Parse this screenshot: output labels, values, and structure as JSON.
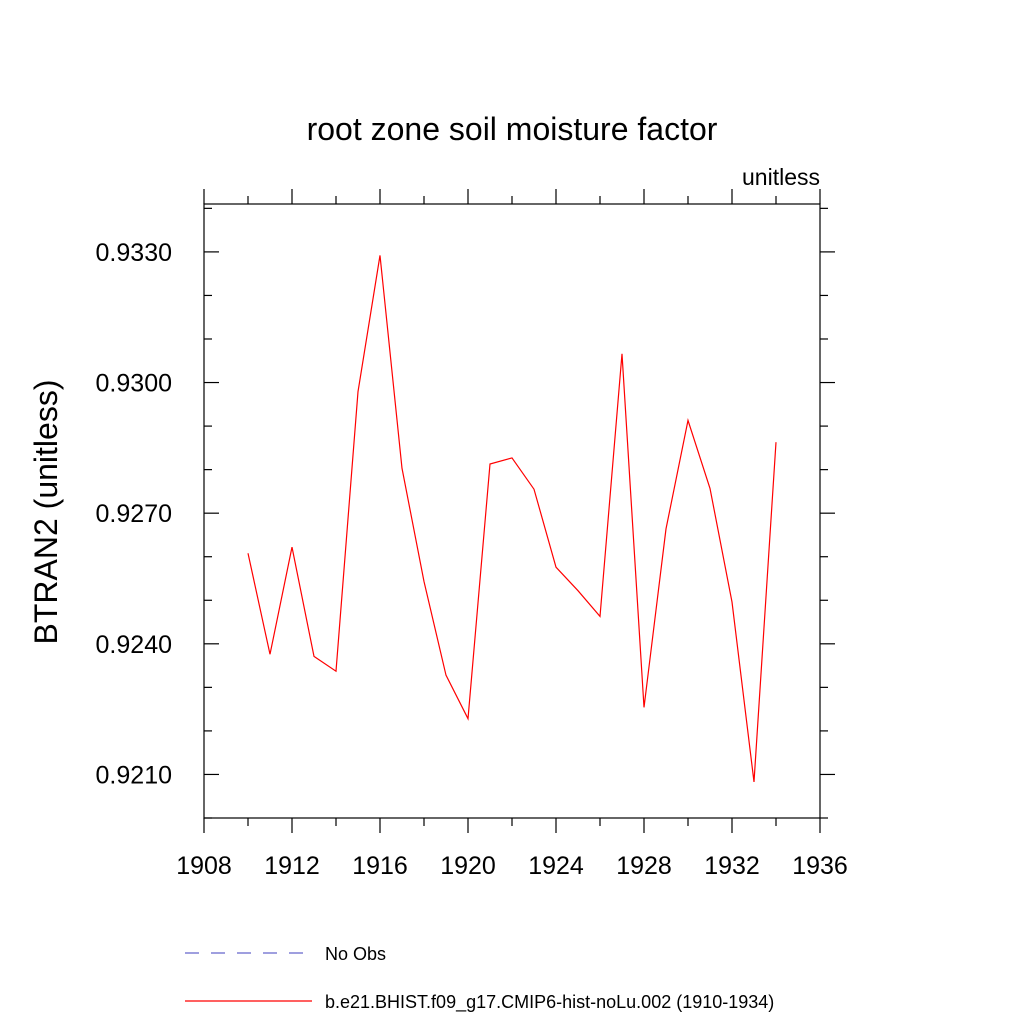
{
  "chart_data": {
    "type": "line",
    "title": "root zone soil moisture factor",
    "subtitle": "unitless",
    "xlabel": "",
    "ylabel": "BTRAN2  (unitless)",
    "xlim": [
      1908,
      1936
    ],
    "ylim": [
      0.92,
      0.9341
    ],
    "x_ticks": [
      1908,
      1912,
      1916,
      1920,
      1924,
      1928,
      1932,
      1936
    ],
    "x_tick_labels": [
      "1908",
      "1912",
      "1916",
      "1920",
      "1924",
      "1928",
      "1932",
      "1936"
    ],
    "x_minor_step": 2,
    "y_ticks": [
      0.921,
      0.924,
      0.927,
      0.93,
      0.933
    ],
    "y_tick_labels": [
      "0.9210",
      "0.9240",
      "0.9270",
      "0.9300",
      "0.9330"
    ],
    "y_minor_step": 0.001,
    "grid": false,
    "legend_position": "bottom",
    "series": [
      {
        "name": "b.e21.BHIST.f09_g17.CMIP6-hist-noLu.002 (1910-1934)",
        "color": "#ff0000",
        "style": "solid",
        "x": [
          1910,
          1911,
          1912,
          1913,
          1914,
          1915,
          1916,
          1917,
          1918,
          1919,
          1920,
          1921,
          1922,
          1923,
          1924,
          1925,
          1926,
          1927,
          1928,
          1929,
          1930,
          1931,
          1932,
          1933,
          1934
        ],
        "values": [
          0.92608,
          0.92376,
          0.92622,
          0.92371,
          0.92337,
          0.92979,
          0.93292,
          0.92803,
          0.92543,
          0.92328,
          0.92228,
          0.92813,
          0.92827,
          0.92755,
          0.92576,
          0.92522,
          0.92463,
          0.93066,
          0.92254,
          0.92664,
          0.92913,
          0.92757,
          0.92496,
          0.92083,
          0.92863
        ]
      }
    ],
    "legend": [
      {
        "label": "No Obs",
        "color": "#6666cc",
        "style": "dashed"
      },
      {
        "label": "b.e21.BHIST.f09_g17.CMIP6-hist-noLu.002 (1910-1934)",
        "color": "#ff0000",
        "style": "solid"
      }
    ]
  }
}
